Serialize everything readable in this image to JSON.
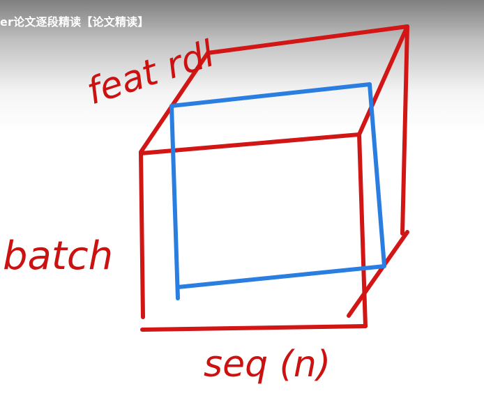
{
  "video": {
    "title": "er论文逐段精读【论文精读】"
  },
  "diagram": {
    "labels": {
      "feature": "feat rdl",
      "batch": "batch",
      "sequence": "seq (n)"
    },
    "colors": {
      "cube_edges": "#d21515",
      "slice": "#2a7de1",
      "label_ink": "#cc1111"
    }
  }
}
